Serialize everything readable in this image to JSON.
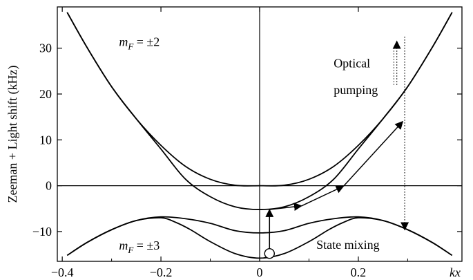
{
  "chart_data": {
    "type": "line",
    "title": "",
    "xlabel": "kx",
    "ylabel": "Zeeman + Light shift (kHz)",
    "xlim": [
      -0.41,
      0.41
    ],
    "ylim": [
      -16.5,
      39
    ],
    "xticks": [
      -0.4,
      -0.2,
      0,
      0.2
    ],
    "xtick_labels": [
      "−0.4",
      "−0.2",
      "0",
      "0.2"
    ],
    "yticks": [
      -10,
      0,
      10,
      20,
      30
    ],
    "ytick_labels": [
      "−10",
      "0",
      "10",
      "20",
      "30"
    ],
    "grid": false,
    "series": [
      {
        "name": "",
        "x": [
          -0.39,
          -0.35,
          -0.3,
          -0.25,
          -0.2,
          -0.15,
          -0.1,
          -0.05,
          0,
          0.05,
          0.1,
          0.15,
          0.2,
          0.25,
          0.3,
          0.35,
          0.39
        ],
        "y": [
          37.8,
          30.2,
          21.6,
          14.6,
          8.8,
          4.2,
          1.4,
          0.1,
          0,
          0.1,
          1.4,
          4.2,
          8.8,
          14.6,
          21.6,
          30.2,
          37.8
        ]
      },
      {
        "name": "",
        "x": [
          -0.39,
          -0.35,
          -0.3,
          -0.25,
          -0.2,
          -0.15,
          -0.1,
          -0.05,
          0,
          0.05,
          0.1,
          0.15,
          0.2,
          0.25,
          0.3,
          0.35,
          0.39
        ],
        "y": [
          37.8,
          30.2,
          21.6,
          14.6,
          8.0,
          1.4,
          -2.4,
          -4.6,
          -5.2,
          -4.6,
          -2.4,
          1.4,
          8.0,
          14.6,
          21.6,
          30.2,
          37.8
        ]
      },
      {
        "name": "",
        "x": [
          -0.39,
          -0.35,
          -0.3,
          -0.25,
          -0.2,
          -0.15,
          -0.1,
          -0.05,
          0,
          0.05,
          0.1,
          0.15,
          0.2,
          0.25,
          0.3,
          0.35,
          0.39
        ],
        "y": [
          -15.2,
          -12.4,
          -9.6,
          -7.6,
          -6.8,
          -7.2,
          -8.2,
          -9.8,
          -10.3,
          -9.8,
          -8.2,
          -7.2,
          -6.8,
          -7.6,
          -9.6,
          -12.4,
          -15.2
        ]
      },
      {
        "name": "",
        "x": [
          -0.39,
          -0.35,
          -0.3,
          -0.25,
          -0.2,
          -0.17,
          -0.14,
          -0.1,
          -0.05,
          0,
          0.05,
          0.1,
          0.14,
          0.17,
          0.2,
          0.25,
          0.3,
          0.35,
          0.39
        ],
        "y": [
          -15.2,
          -12.4,
          -9.6,
          -7.6,
          -7.0,
          -8.0,
          -9.6,
          -12.2,
          -14.8,
          -15.8,
          -14.8,
          -12.2,
          -9.6,
          -8.0,
          -7.0,
          -7.6,
          -9.6,
          -12.4,
          -15.2
        ]
      }
    ],
    "arrows": [
      {
        "type": "solid",
        "from": [
          0.02,
          -14.8
        ],
        "to": [
          0.02,
          -5.2
        ]
      },
      {
        "type": "solid",
        "from": [
          0.02,
          -5.2
        ],
        "to": [
          0.085,
          -4.4
        ]
      },
      {
        "type": "solid",
        "from": [
          0.085,
          -4.4
        ],
        "to": [
          0.17,
          -0.1
        ]
      },
      {
        "type": "solid",
        "from": [
          0.17,
          -0.1
        ],
        "to": [
          0.29,
          14.0
        ]
      },
      {
        "type": "dotted",
        "from": [
          0.294,
          32.5
        ],
        "to": [
          0.294,
          -9.6
        ]
      },
      {
        "type": "solid",
        "from": [
          0.294,
          -9.6
        ],
        "to": [
          0.294,
          1.0
        ],
        "hidden": true
      },
      {
        "type": "dotted",
        "from": [
          0.278,
          22.0
        ],
        "to": [
          0.278,
          31.5
        ]
      }
    ],
    "marker": {
      "x": 0.02,
      "y": -14.8,
      "shape": "open-circle"
    },
    "annotations": [
      {
        "text_main": "m",
        "sub": "F",
        "rest": " = ±2",
        "x": -0.285,
        "y": 30.5
      },
      {
        "text_main": "m",
        "sub": "F",
        "rest": " = ±3",
        "x": -0.285,
        "y": -13.9
      },
      {
        "text": "Optical",
        "x": 0.15,
        "y": 25.8
      },
      {
        "text": "pumping",
        "x": 0.15,
        "y": 20.0
      },
      {
        "text": "State mixing",
        "x": 0.115,
        "y": -13.8
      }
    ]
  }
}
